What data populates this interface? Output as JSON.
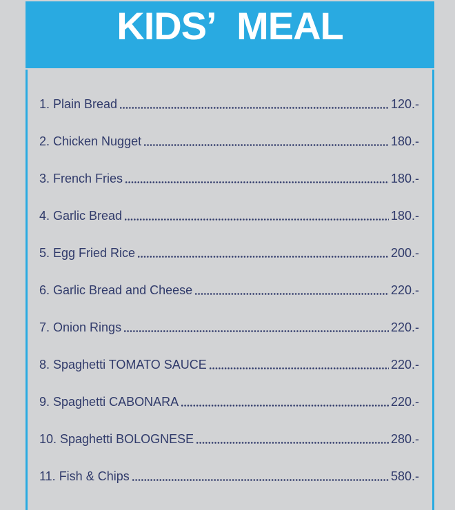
{
  "header": {
    "title": "KIDS’ MEAL"
  },
  "menu": {
    "items": [
      {
        "label": "1. Plain Bread",
        "price": "120.-"
      },
      {
        "label": "2. Chicken Nugget",
        "price": "180.-"
      },
      {
        "label": "3. French Fries",
        "price": "180.-"
      },
      {
        "label": "4. Garlic Bread",
        "price": "180.-"
      },
      {
        "label": "5. Egg Fried Rice",
        "price": "200.-"
      },
      {
        "label": "6. Garlic Bread and Cheese",
        "price": "220.-"
      },
      {
        "label": "7. Onion Rings",
        "price": "220.-"
      },
      {
        "label": "8. Spaghetti TOMATO SAUCE",
        "price": "220.-"
      },
      {
        "label": "9. Spaghetti CABONARA",
        "price": "220.-"
      },
      {
        "label": "10. Spaghetti BOLOGNESE",
        "price": "280.-"
      },
      {
        "label": "11. Fish & Chips",
        "price": "580.-"
      }
    ]
  },
  "colors": {
    "accent_blue": "#29aae1",
    "background_gray": "#d2d3d5",
    "text_navy": "#313b6b",
    "title_white": "#ffffff"
  }
}
